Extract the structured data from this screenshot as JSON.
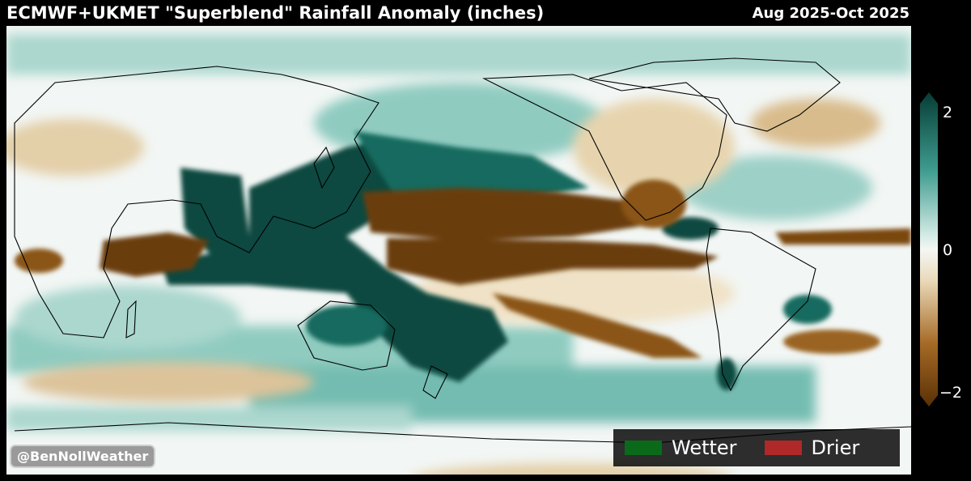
{
  "header": {
    "title": "ECMWF+UKMET \"Superblend\" Rainfall Anomaly (inches)",
    "period": "Aug 2025-Oct 2025"
  },
  "colorbar": {
    "max_label": "2",
    "mid_label": "0",
    "min_label": "−2",
    "colors": {
      "wet": "#0a4a40",
      "neutral": "#f4f7f5",
      "dry": "#6b3d08"
    }
  },
  "credit": {
    "label": "@BenNollWeather"
  },
  "legend": {
    "items": [
      {
        "label": "Wetter",
        "color": "#0a6a1a"
      },
      {
        "label": "Drier",
        "color": "#b02828"
      }
    ]
  }
}
